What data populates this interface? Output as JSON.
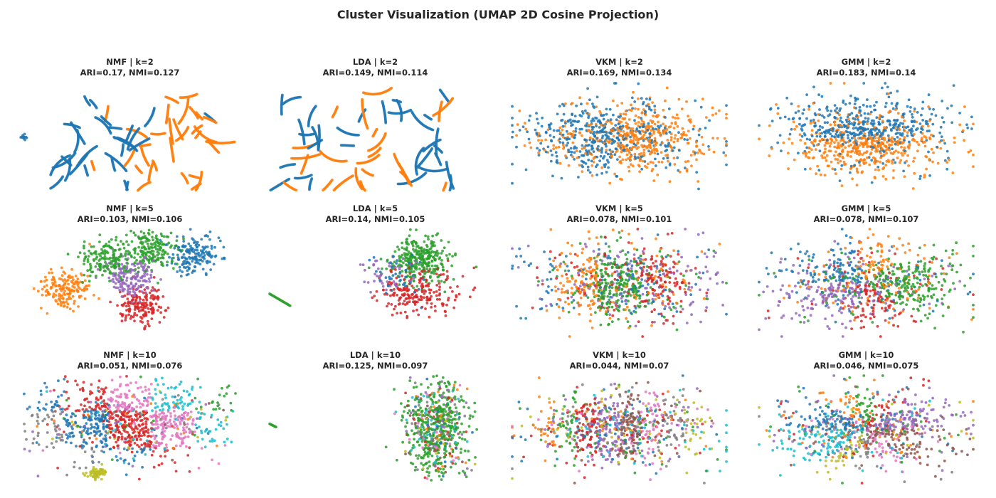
{
  "figure": {
    "title": "Cluster Visualization (UMAP 2D Cosine Projection)"
  },
  "palette": [
    "#1f77b4",
    "#ff7f0e",
    "#2ca02c",
    "#d62728",
    "#9467bd",
    "#8c564b",
    "#e377c2",
    "#7f7f7f",
    "#bcbd22",
    "#17becf"
  ],
  "chart_data": [
    {
      "type": "scatter",
      "method": "NMF",
      "k": 2,
      "title": "NMF | k=2",
      "subtitle": "ARI=0.17, NMI=0.127",
      "ari": 0.17,
      "nmi": 0.127,
      "axes": "off",
      "grid": false
    },
    {
      "type": "scatter",
      "method": "LDA",
      "k": 2,
      "title": "LDA | k=2",
      "subtitle": "ARI=0.149, NMI=0.114",
      "ari": 0.149,
      "nmi": 0.114,
      "axes": "off",
      "grid": false
    },
    {
      "type": "scatter",
      "method": "VKM",
      "k": 2,
      "title": "VKM | k=2",
      "subtitle": "ARI=0.169, NMI=0.134",
      "ari": 0.169,
      "nmi": 0.134,
      "axes": "off",
      "grid": false
    },
    {
      "type": "scatter",
      "method": "GMM",
      "k": 2,
      "title": "GMM | k=2",
      "subtitle": "ARI=0.183, NMI=0.14",
      "ari": 0.183,
      "nmi": 0.14,
      "axes": "off",
      "grid": false
    },
    {
      "type": "scatter",
      "method": "NMF",
      "k": 5,
      "title": "NMF | k=5",
      "subtitle": "ARI=0.103, NMI=0.106",
      "ari": 0.103,
      "nmi": 0.106,
      "axes": "off",
      "grid": false
    },
    {
      "type": "scatter",
      "method": "LDA",
      "k": 5,
      "title": "LDA | k=5",
      "subtitle": "ARI=0.14, NMI=0.105",
      "ari": 0.14,
      "nmi": 0.105,
      "axes": "off",
      "grid": false
    },
    {
      "type": "scatter",
      "method": "VKM",
      "k": 5,
      "title": "VKM | k=5",
      "subtitle": "ARI=0.078, NMI=0.101",
      "ari": 0.078,
      "nmi": 0.101,
      "axes": "off",
      "grid": false
    },
    {
      "type": "scatter",
      "method": "GMM",
      "k": 5,
      "title": "GMM | k=5",
      "subtitle": "ARI=0.078, NMI=0.107",
      "ari": 0.078,
      "nmi": 0.107,
      "axes": "off",
      "grid": false
    },
    {
      "type": "scatter",
      "method": "NMF",
      "k": 10,
      "title": "NMF | k=10",
      "subtitle": "ARI=0.051, NMI=0.076",
      "ari": 0.051,
      "nmi": 0.076,
      "axes": "off",
      "grid": false
    },
    {
      "type": "scatter",
      "method": "LDA",
      "k": 10,
      "title": "LDA | k=10",
      "subtitle": "ARI=0.125, NMI=0.097",
      "ari": 0.125,
      "nmi": 0.097,
      "axes": "off",
      "grid": false
    },
    {
      "type": "scatter",
      "method": "VKM",
      "k": 10,
      "title": "VKM | k=10",
      "subtitle": "ARI=0.044, NMI=0.07",
      "ari": 0.044,
      "nmi": 0.07,
      "axes": "off",
      "grid": false
    },
    {
      "type": "scatter",
      "method": "GMM",
      "k": 10,
      "title": "GMM | k=10",
      "subtitle": "ARI=0.046, NMI=0.075",
      "ari": 0.046,
      "nmi": 0.075,
      "axes": "off",
      "grid": false
    }
  ]
}
